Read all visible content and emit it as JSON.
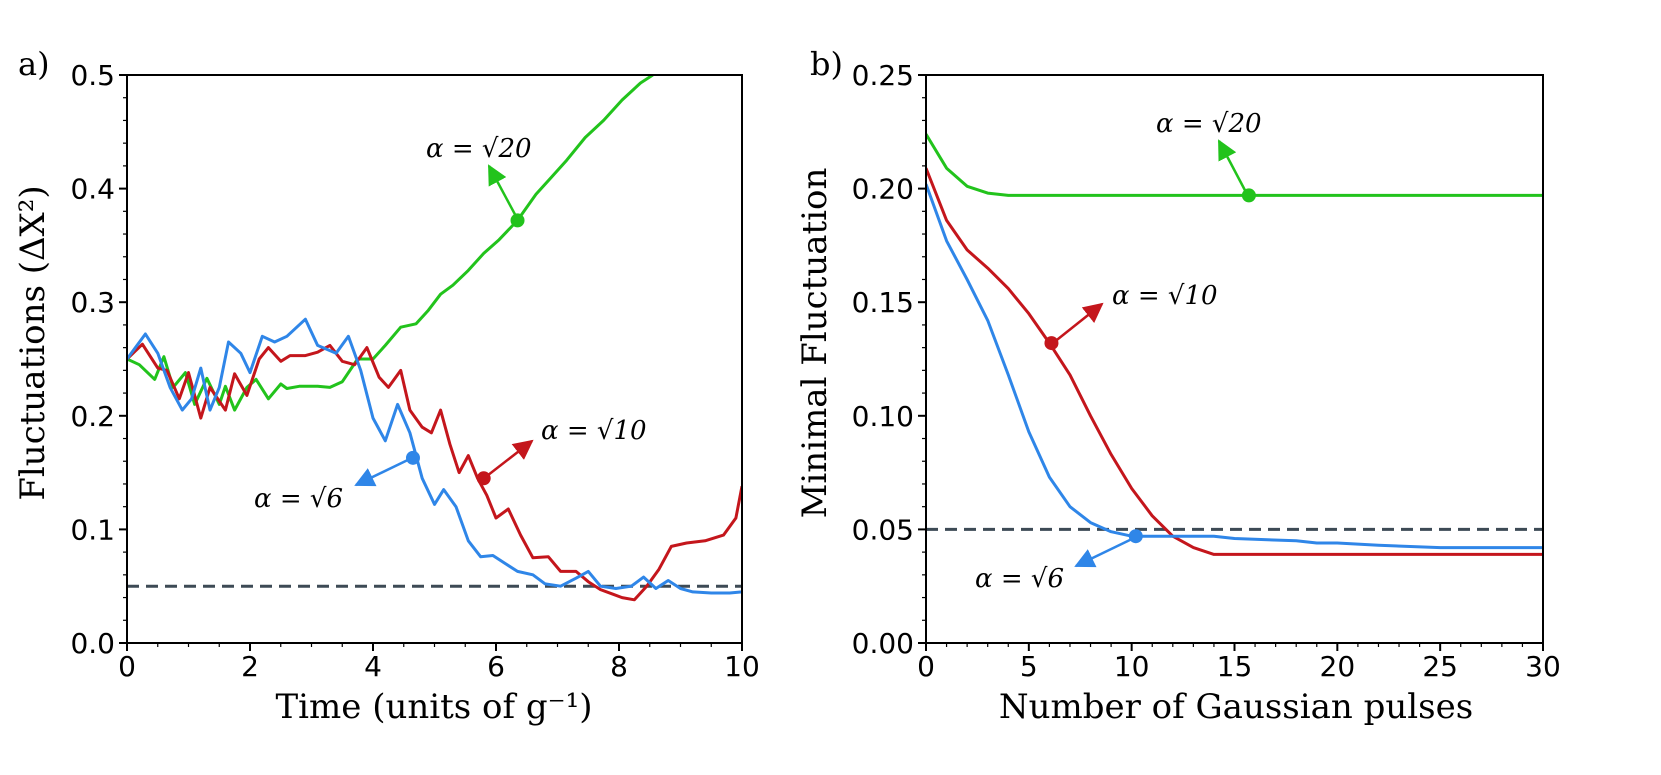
{
  "chart_data": [
    {
      "type": "line",
      "panel_label": "a)",
      "xlabel": "Time (units of g⁻¹)",
      "ylabel": "Fluctuations (ΔX²)",
      "xlim": [
        0,
        10
      ],
      "ylim": [
        0,
        0.5
      ],
      "xticks": [
        "0",
        "2",
        "4",
        "6",
        "8",
        "10"
      ],
      "yticks": [
        "0.0",
        "0.1",
        "0.2",
        "0.3",
        "0.4",
        "0.5"
      ],
      "reference_line": {
        "y": 0.05,
        "style": "dashed",
        "color": "#3d4a55"
      },
      "series": [
        {
          "name": "α = √20",
          "color": "#22c31c",
          "x": [
            0,
            0.2,
            0.45,
            0.6,
            0.75,
            0.95,
            1.1,
            1.3,
            1.5,
            1.6,
            1.75,
            1.95,
            2.1,
            2.3,
            2.5,
            2.6,
            2.8,
            3.1,
            3.3,
            3.5,
            3.75,
            4.0,
            4.2,
            4.45,
            4.7,
            4.9,
            5.1,
            5.3,
            5.55,
            5.8,
            6.05,
            6.35,
            6.65,
            6.9,
            7.15,
            7.45,
            7.75,
            8.05,
            8.35,
            8.55
          ],
          "y": [
            0.25,
            0.245,
            0.232,
            0.252,
            0.225,
            0.238,
            0.21,
            0.233,
            0.21,
            0.226,
            0.205,
            0.225,
            0.232,
            0.215,
            0.228,
            0.224,
            0.226,
            0.226,
            0.225,
            0.23,
            0.25,
            0.25,
            0.262,
            0.278,
            0.281,
            0.293,
            0.307,
            0.315,
            0.328,
            0.343,
            0.355,
            0.372,
            0.395,
            0.41,
            0.425,
            0.445,
            0.46,
            0.478,
            0.493,
            0.5
          ],
          "marker": {
            "x": 6.35,
            "y": 0.372
          },
          "annotation": "α = √20"
        },
        {
          "name": "α = √10",
          "color": "#c4161c",
          "x": [
            0,
            0.25,
            0.5,
            0.65,
            0.85,
            1.0,
            1.2,
            1.35,
            1.6,
            1.75,
            1.95,
            2.15,
            2.3,
            2.5,
            2.65,
            2.9,
            3.1,
            3.3,
            3.5,
            3.7,
            3.9,
            4.1,
            4.25,
            4.45,
            4.6,
            4.8,
            4.95,
            5.1,
            5.25,
            5.4,
            5.55,
            5.7,
            5.85,
            6.0,
            6.2,
            6.4,
            6.6,
            6.85,
            7.05,
            7.3,
            7.5,
            7.7,
            7.9,
            8.05,
            8.25,
            8.45,
            8.65,
            8.85,
            9.1,
            9.4,
            9.7,
            9.9,
            10.0
          ],
          "y": [
            0.25,
            0.263,
            0.242,
            0.24,
            0.215,
            0.238,
            0.198,
            0.225,
            0.205,
            0.237,
            0.218,
            0.25,
            0.26,
            0.248,
            0.253,
            0.253,
            0.256,
            0.262,
            0.248,
            0.245,
            0.26,
            0.234,
            0.225,
            0.24,
            0.205,
            0.19,
            0.185,
            0.205,
            0.175,
            0.15,
            0.165,
            0.145,
            0.13,
            0.11,
            0.118,
            0.095,
            0.075,
            0.076,
            0.063,
            0.063,
            0.054,
            0.047,
            0.043,
            0.04,
            0.038,
            0.05,
            0.065,
            0.085,
            0.088,
            0.09,
            0.095,
            0.11,
            0.138
          ],
          "marker": {
            "x": 5.8,
            "y": 0.145
          },
          "annotation": "α = √10"
        },
        {
          "name": "α = √6",
          "color": "#2f86e8",
          "x": [
            0,
            0.3,
            0.5,
            0.7,
            0.9,
            1.05,
            1.2,
            1.35,
            1.5,
            1.65,
            1.85,
            2.0,
            2.2,
            2.4,
            2.6,
            2.9,
            3.1,
            3.4,
            3.6,
            3.8,
            4.0,
            4.2,
            4.4,
            4.6,
            4.8,
            5.0,
            5.15,
            5.35,
            5.55,
            5.75,
            5.95,
            6.15,
            6.35,
            6.6,
            6.8,
            7.05,
            7.3,
            7.5,
            7.7,
            7.95,
            8.2,
            8.4,
            8.6,
            8.8,
            9.0,
            9.2,
            9.5,
            9.8,
            10.0
          ],
          "y": [
            0.25,
            0.272,
            0.255,
            0.225,
            0.205,
            0.215,
            0.242,
            0.205,
            0.225,
            0.265,
            0.255,
            0.238,
            0.27,
            0.265,
            0.27,
            0.285,
            0.262,
            0.255,
            0.27,
            0.24,
            0.198,
            0.178,
            0.21,
            0.185,
            0.145,
            0.122,
            0.135,
            0.12,
            0.09,
            0.076,
            0.077,
            0.07,
            0.063,
            0.06,
            0.052,
            0.05,
            0.057,
            0.063,
            0.05,
            0.048,
            0.05,
            0.058,
            0.048,
            0.055,
            0.048,
            0.045,
            0.044,
            0.044,
            0.045
          ],
          "marker": {
            "x": 4.65,
            "y": 0.163
          },
          "annotation": "α = √6"
        }
      ]
    },
    {
      "type": "line",
      "panel_label": "b)",
      "xlabel": "Number of Gaussian pulses",
      "ylabel": "Minimal Fluctuation",
      "xlim": [
        0,
        30
      ],
      "ylim": [
        0,
        0.25
      ],
      "xticks": [
        "0",
        "5",
        "10",
        "15",
        "20",
        "25",
        "30"
      ],
      "yticks": [
        "0.00",
        "0.05",
        "0.10",
        "0.15",
        "0.20",
        "0.25"
      ],
      "reference_line": {
        "y": 0.05,
        "style": "dashed",
        "color": "#3d4a55"
      },
      "series": [
        {
          "name": "α = √20",
          "color": "#22c31c",
          "x": [
            0,
            1,
            2,
            3,
            4,
            5,
            6,
            10,
            15,
            20,
            25,
            30
          ],
          "y": [
            0.224,
            0.209,
            0.201,
            0.198,
            0.197,
            0.197,
            0.197,
            0.197,
            0.197,
            0.197,
            0.197,
            0.197
          ],
          "marker": {
            "x": 15.7,
            "y": 0.197
          },
          "annotation": "α = √20"
        },
        {
          "name": "α = √10",
          "color": "#c4161c",
          "x": [
            0,
            1,
            2,
            3,
            4,
            5,
            6,
            7,
            8,
            9,
            10,
            11,
            12,
            13,
            14,
            15,
            20,
            25,
            30
          ],
          "y": [
            0.209,
            0.186,
            0.173,
            0.165,
            0.156,
            0.145,
            0.132,
            0.118,
            0.1,
            0.083,
            0.068,
            0.056,
            0.047,
            0.042,
            0.039,
            0.039,
            0.039,
            0.039,
            0.039
          ],
          "marker": {
            "x": 6.1,
            "y": 0.132
          },
          "annotation": "α = √10"
        },
        {
          "name": "α = √6",
          "color": "#2f86e8",
          "x": [
            0,
            1,
            2,
            3,
            4,
            5,
            6,
            7,
            8,
            9,
            10,
            11,
            12,
            13,
            14,
            15,
            18,
            19,
            20,
            22,
            25,
            30
          ],
          "y": [
            0.202,
            0.177,
            0.16,
            0.142,
            0.118,
            0.093,
            0.073,
            0.06,
            0.053,
            0.049,
            0.047,
            0.047,
            0.047,
            0.047,
            0.047,
            0.046,
            0.045,
            0.044,
            0.044,
            0.043,
            0.042,
            0.042
          ],
          "marker": {
            "x": 10.2,
            "y": 0.047
          },
          "annotation": "α = √6"
        }
      ]
    }
  ]
}
